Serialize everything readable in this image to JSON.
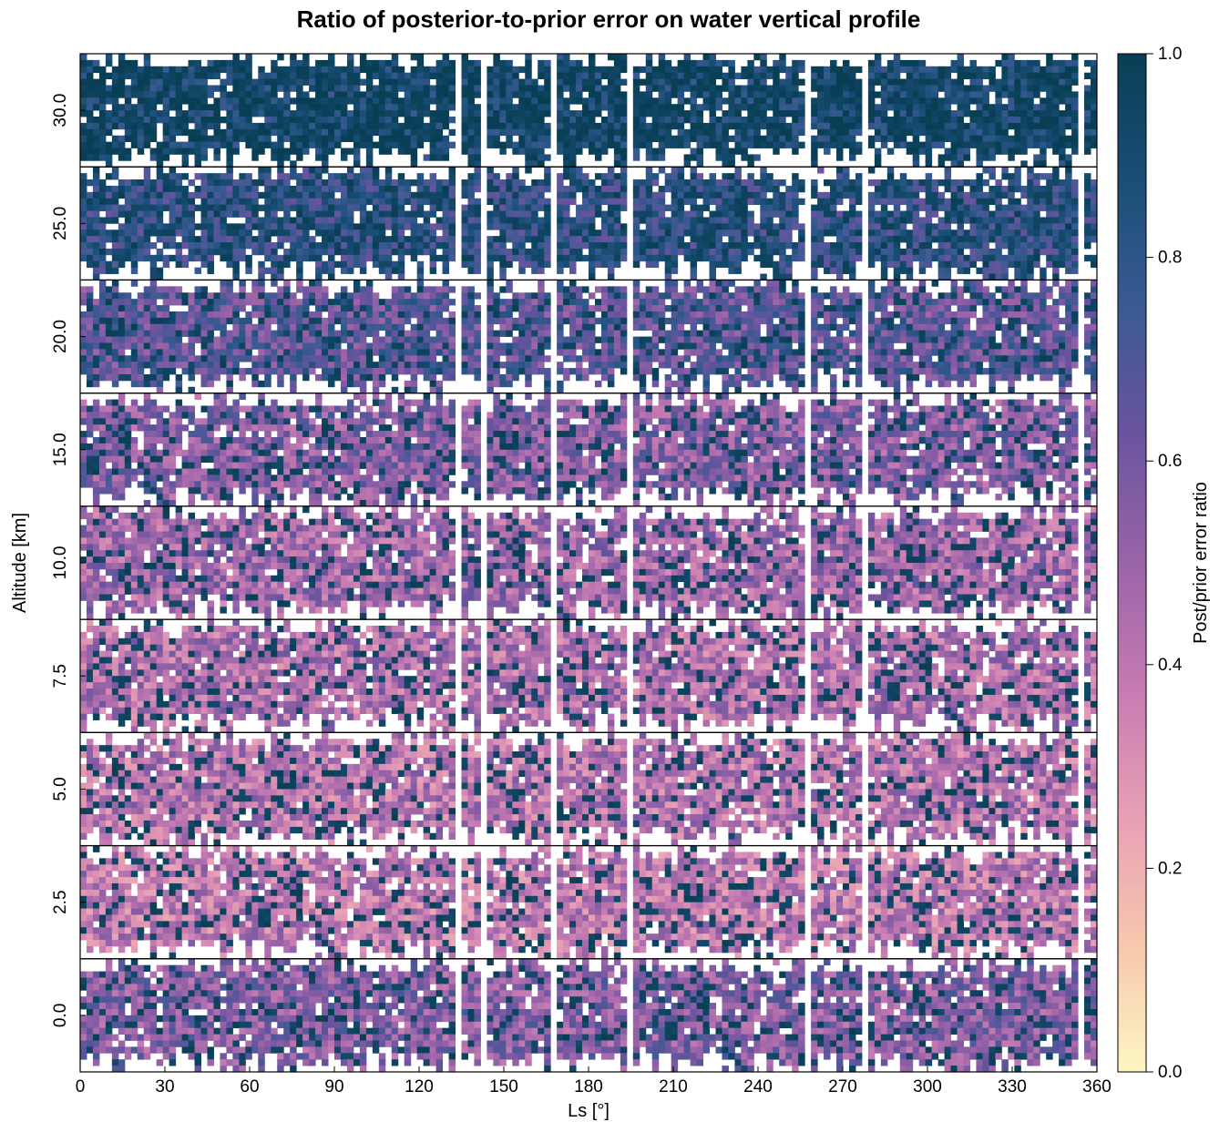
{
  "chart_data": {
    "type": "heatmap",
    "title": "Ratio of posterior-to-prior error on water vertical profile",
    "xlabel": "Ls [°]",
    "ylabel": "Altitude [km]",
    "xlim": [
      0,
      360
    ],
    "xticks": [
      0,
      30,
      60,
      90,
      120,
      150,
      180,
      210,
      240,
      270,
      300,
      330,
      360
    ],
    "panels": [
      {
        "altitude_label": "30.0"
      },
      {
        "altitude_label": "25.0"
      },
      {
        "altitude_label": "20.0"
      },
      {
        "altitude_label": "15.0"
      },
      {
        "altitude_label": "10.0"
      },
      {
        "altitude_label": "7.5"
      },
      {
        "altitude_label": "5.0"
      },
      {
        "altitude_label": "2.5"
      },
      {
        "altitude_label": "0.0"
      }
    ],
    "colorbar": {
      "label": "Post/prior error ratio",
      "range": [
        0.0,
        1.0
      ],
      "ticks": [
        "0.0",
        "0.2",
        "0.4",
        "0.6",
        "0.8",
        "1.0"
      ],
      "colormap": [
        "#fdf6c3",
        "#f7c7ad",
        "#e8a0b4",
        "#c67bb2",
        "#9a64a8",
        "#6a549f",
        "#3b5a92",
        "#1a4e77",
        "#093f55"
      ]
    },
    "grid": false,
    "legend": "none"
  }
}
